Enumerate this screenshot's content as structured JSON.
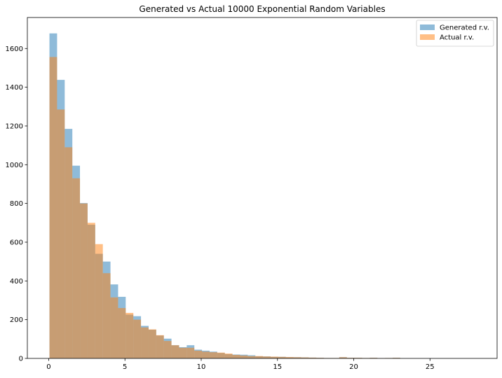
{
  "chart_data": {
    "type": "bar",
    "title": "Generated vs Actual 10000 Exponential Random Variables",
    "xlabel": "",
    "ylabel": "",
    "xlim": [
      -1.4,
      29.4
    ],
    "ylim": [
      0,
      1760
    ],
    "grid": false,
    "legend_position": "top-right",
    "xticks": [
      0,
      5,
      10,
      15,
      20,
      25
    ],
    "yticks": [
      0,
      200,
      400,
      600,
      800,
      1000,
      1200,
      1400,
      1600
    ],
    "series": [
      {
        "name": "Generated r.v.",
        "color": "#1f77b4",
        "opacity": 0.5,
        "bin_start": 0.05,
        "bin_width": 0.5,
        "values": [
          1678,
          1438,
          1185,
          995,
          802,
          690,
          540,
          500,
          382,
          318,
          226,
          218,
          168,
          148,
          118,
          102,
          68,
          58,
          68,
          45,
          40,
          35,
          28,
          22,
          20,
          19,
          16,
          11,
          10,
          8,
          8,
          6,
          6,
          5,
          4,
          3,
          2,
          2,
          6,
          3,
          3,
          2,
          3,
          1,
          2,
          3
        ]
      },
      {
        "name": "Actual r.v.",
        "color": "#ff7f0e",
        "opacity": 0.5,
        "bin_start": 0.05,
        "bin_width": 0.5,
        "values": [
          1556,
          1285,
          1090,
          930,
          800,
          700,
          590,
          440,
          315,
          260,
          235,
          200,
          160,
          150,
          120,
          90,
          68,
          55,
          55,
          40,
          35,
          32,
          30,
          25,
          18,
          15,
          12,
          12,
          10,
          9,
          8,
          7,
          6,
          5,
          4,
          3,
          2,
          2,
          6,
          3,
          3,
          2,
          3,
          1,
          2,
          3
        ]
      }
    ]
  }
}
